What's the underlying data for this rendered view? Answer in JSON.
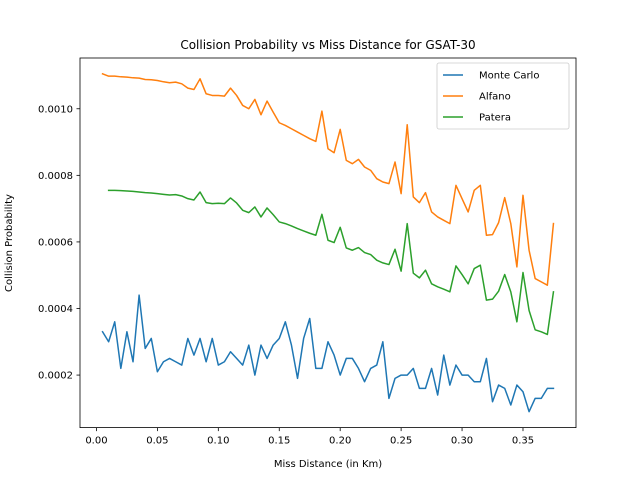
{
  "chart_data": {
    "type": "line",
    "title": "Collision Probability vs Miss Distance for GSAT-30",
    "xlabel": "Miss Distance (in Km)",
    "ylabel": "Collision Probability",
    "xlim": [
      -0.0135,
      0.3935
    ],
    "ylim": [
      4.22e-05,
      0.0011525
    ],
    "xticks": [
      0.0,
      0.05,
      0.1,
      0.15,
      0.2,
      0.25,
      0.3,
      0.35
    ],
    "xtick_labels": [
      "0.00",
      "0.05",
      "0.10",
      "0.15",
      "0.20",
      "0.25",
      "0.30",
      "0.35"
    ],
    "yticks": [
      0.0002,
      0.0004,
      0.0006,
      0.0008,
      0.001
    ],
    "ytick_labels": [
      "0.0002",
      "0.0004",
      "0.0006",
      "0.0008",
      "0.0010"
    ],
    "grid": false,
    "legend_position": "top-right",
    "series": [
      {
        "name": "Monte Carlo",
        "color": "#1f77b4",
        "x": [
          0.005,
          0.01,
          0.015,
          0.02,
          0.025,
          0.03,
          0.035,
          0.04,
          0.045,
          0.05,
          0.055,
          0.06,
          0.065,
          0.07,
          0.075,
          0.08,
          0.085,
          0.09,
          0.095,
          0.1,
          0.105,
          0.11,
          0.115,
          0.12,
          0.125,
          0.13,
          0.135,
          0.14,
          0.145,
          0.15,
          0.155,
          0.16,
          0.165,
          0.17,
          0.175,
          0.18,
          0.185,
          0.19,
          0.195,
          0.2,
          0.205,
          0.21,
          0.215,
          0.22,
          0.225,
          0.23,
          0.235,
          0.24,
          0.245,
          0.25,
          0.255,
          0.26,
          0.265,
          0.27,
          0.275,
          0.28,
          0.285,
          0.29,
          0.295,
          0.3,
          0.305,
          0.31,
          0.315,
          0.32,
          0.325,
          0.33,
          0.335,
          0.34,
          0.345,
          0.35,
          0.355,
          0.36,
          0.365,
          0.37,
          0.375
        ],
        "values": [
          0.00033,
          0.0003,
          0.00036,
          0.00022,
          0.00033,
          0.00024,
          0.00044,
          0.00028,
          0.00031,
          0.00021,
          0.00024,
          0.00025,
          0.00024,
          0.00023,
          0.00031,
          0.00026,
          0.00031,
          0.00024,
          0.00031,
          0.00023,
          0.00024,
          0.00027,
          0.00025,
          0.00023,
          0.00029,
          0.0002,
          0.00029,
          0.00025,
          0.00029,
          0.00031,
          0.00036,
          0.00029,
          0.00019,
          0.00031,
          0.00037,
          0.00022,
          0.00022,
          0.0003,
          0.00026,
          0.0002,
          0.00025,
          0.00025,
          0.00022,
          0.00018,
          0.00022,
          0.00023,
          0.0003,
          0.00013,
          0.00019,
          0.0002,
          0.0002,
          0.00022,
          0.00016,
          0.00016,
          0.00022,
          0.00014,
          0.00026,
          0.00017,
          0.00023,
          0.0002,
          0.0002,
          0.00018,
          0.00018,
          0.00025,
          0.00012,
          0.00017,
          0.00016,
          0.00011,
          0.00017,
          0.00015,
          9e-05,
          0.00013,
          0.00013,
          0.00016,
          0.00016
        ]
      },
      {
        "name": "Alfano",
        "color": "#ff7f0e",
        "x": [
          0.005,
          0.01,
          0.015,
          0.02,
          0.025,
          0.03,
          0.035,
          0.04,
          0.045,
          0.05,
          0.055,
          0.06,
          0.065,
          0.07,
          0.075,
          0.08,
          0.085,
          0.09,
          0.095,
          0.1,
          0.105,
          0.11,
          0.115,
          0.12,
          0.125,
          0.13,
          0.135,
          0.14,
          0.145,
          0.15,
          0.155,
          0.16,
          0.165,
          0.17,
          0.175,
          0.18,
          0.185,
          0.19,
          0.195,
          0.2,
          0.205,
          0.21,
          0.215,
          0.22,
          0.225,
          0.23,
          0.235,
          0.24,
          0.245,
          0.25,
          0.255,
          0.26,
          0.265,
          0.27,
          0.275,
          0.28,
          0.285,
          0.29,
          0.295,
          0.3,
          0.305,
          0.31,
          0.315,
          0.32,
          0.325,
          0.33,
          0.335,
          0.34,
          0.345,
          0.35,
          0.355,
          0.36,
          0.365,
          0.37,
          0.375
        ],
        "values": [
          0.001105,
          0.001098,
          0.001098,
          0.001096,
          0.001095,
          0.001093,
          0.001092,
          0.001088,
          0.001087,
          0.001085,
          0.001081,
          0.001078,
          0.00108,
          0.001075,
          0.001062,
          0.001058,
          0.00109,
          0.001045,
          0.00104,
          0.00104,
          0.001038,
          0.001062,
          0.00104,
          0.00101,
          0.001,
          0.001028,
          0.000982,
          0.001023,
          0.00099,
          0.000958,
          0.00095,
          0.00094,
          0.00093,
          0.00092,
          0.00091,
          0.000902,
          0.000993,
          0.00088,
          0.000868,
          0.000938,
          0.000845,
          0.000835,
          0.000848,
          0.000825,
          0.000815,
          0.00079,
          0.00078,
          0.000775,
          0.00084,
          0.000745,
          0.000952,
          0.000735,
          0.000718,
          0.000748,
          0.00069,
          0.000675,
          0.000665,
          0.000655,
          0.00077,
          0.00073,
          0.00069,
          0.000755,
          0.00077,
          0.00062,
          0.000622,
          0.000658,
          0.000733,
          0.000655,
          0.000525,
          0.00074,
          0.000575,
          0.00049,
          0.00048,
          0.00047,
          0.000655
        ]
      },
      {
        "name": "Patera",
        "color": "#2ca02c",
        "x": [
          0.01,
          0.015,
          0.02,
          0.025,
          0.03,
          0.035,
          0.04,
          0.045,
          0.05,
          0.055,
          0.06,
          0.065,
          0.07,
          0.075,
          0.08,
          0.085,
          0.09,
          0.095,
          0.1,
          0.105,
          0.11,
          0.115,
          0.12,
          0.125,
          0.13,
          0.135,
          0.14,
          0.145,
          0.15,
          0.155,
          0.16,
          0.165,
          0.17,
          0.175,
          0.18,
          0.185,
          0.19,
          0.195,
          0.2,
          0.205,
          0.21,
          0.215,
          0.22,
          0.225,
          0.23,
          0.235,
          0.24,
          0.245,
          0.25,
          0.255,
          0.26,
          0.265,
          0.27,
          0.275,
          0.28,
          0.285,
          0.29,
          0.295,
          0.3,
          0.305,
          0.31,
          0.315,
          0.32,
          0.325,
          0.33,
          0.335,
          0.34,
          0.345,
          0.35,
          0.355,
          0.36,
          0.365,
          0.37,
          0.375
        ],
        "values": [
          0.000755,
          0.000755,
          0.000754,
          0.000753,
          0.000752,
          0.00075,
          0.000748,
          0.000747,
          0.000745,
          0.000743,
          0.000741,
          0.000742,
          0.000738,
          0.00073,
          0.000726,
          0.00075,
          0.000718,
          0.000715,
          0.000716,
          0.000715,
          0.000732,
          0.000717,
          0.000695,
          0.000688,
          0.000705,
          0.000675,
          0.000702,
          0.000682,
          0.00066,
          0.000655,
          0.000648,
          0.00064,
          0.000633,
          0.000626,
          0.00062,
          0.000683,
          0.000605,
          0.000598,
          0.000644,
          0.000582,
          0.000575,
          0.000583,
          0.000568,
          0.000562,
          0.000545,
          0.000537,
          0.000532,
          0.000578,
          0.000512,
          0.000655,
          0.000506,
          0.000492,
          0.000515,
          0.000474,
          0.000465,
          0.000458,
          0.00045,
          0.000528,
          0.000502,
          0.000474,
          0.00052,
          0.00053,
          0.000425,
          0.000428,
          0.000452,
          0.000502,
          0.00045,
          0.00036,
          0.000508,
          0.000394,
          0.000336,
          0.00033,
          0.000322,
          0.00045
        ]
      }
    ]
  }
}
